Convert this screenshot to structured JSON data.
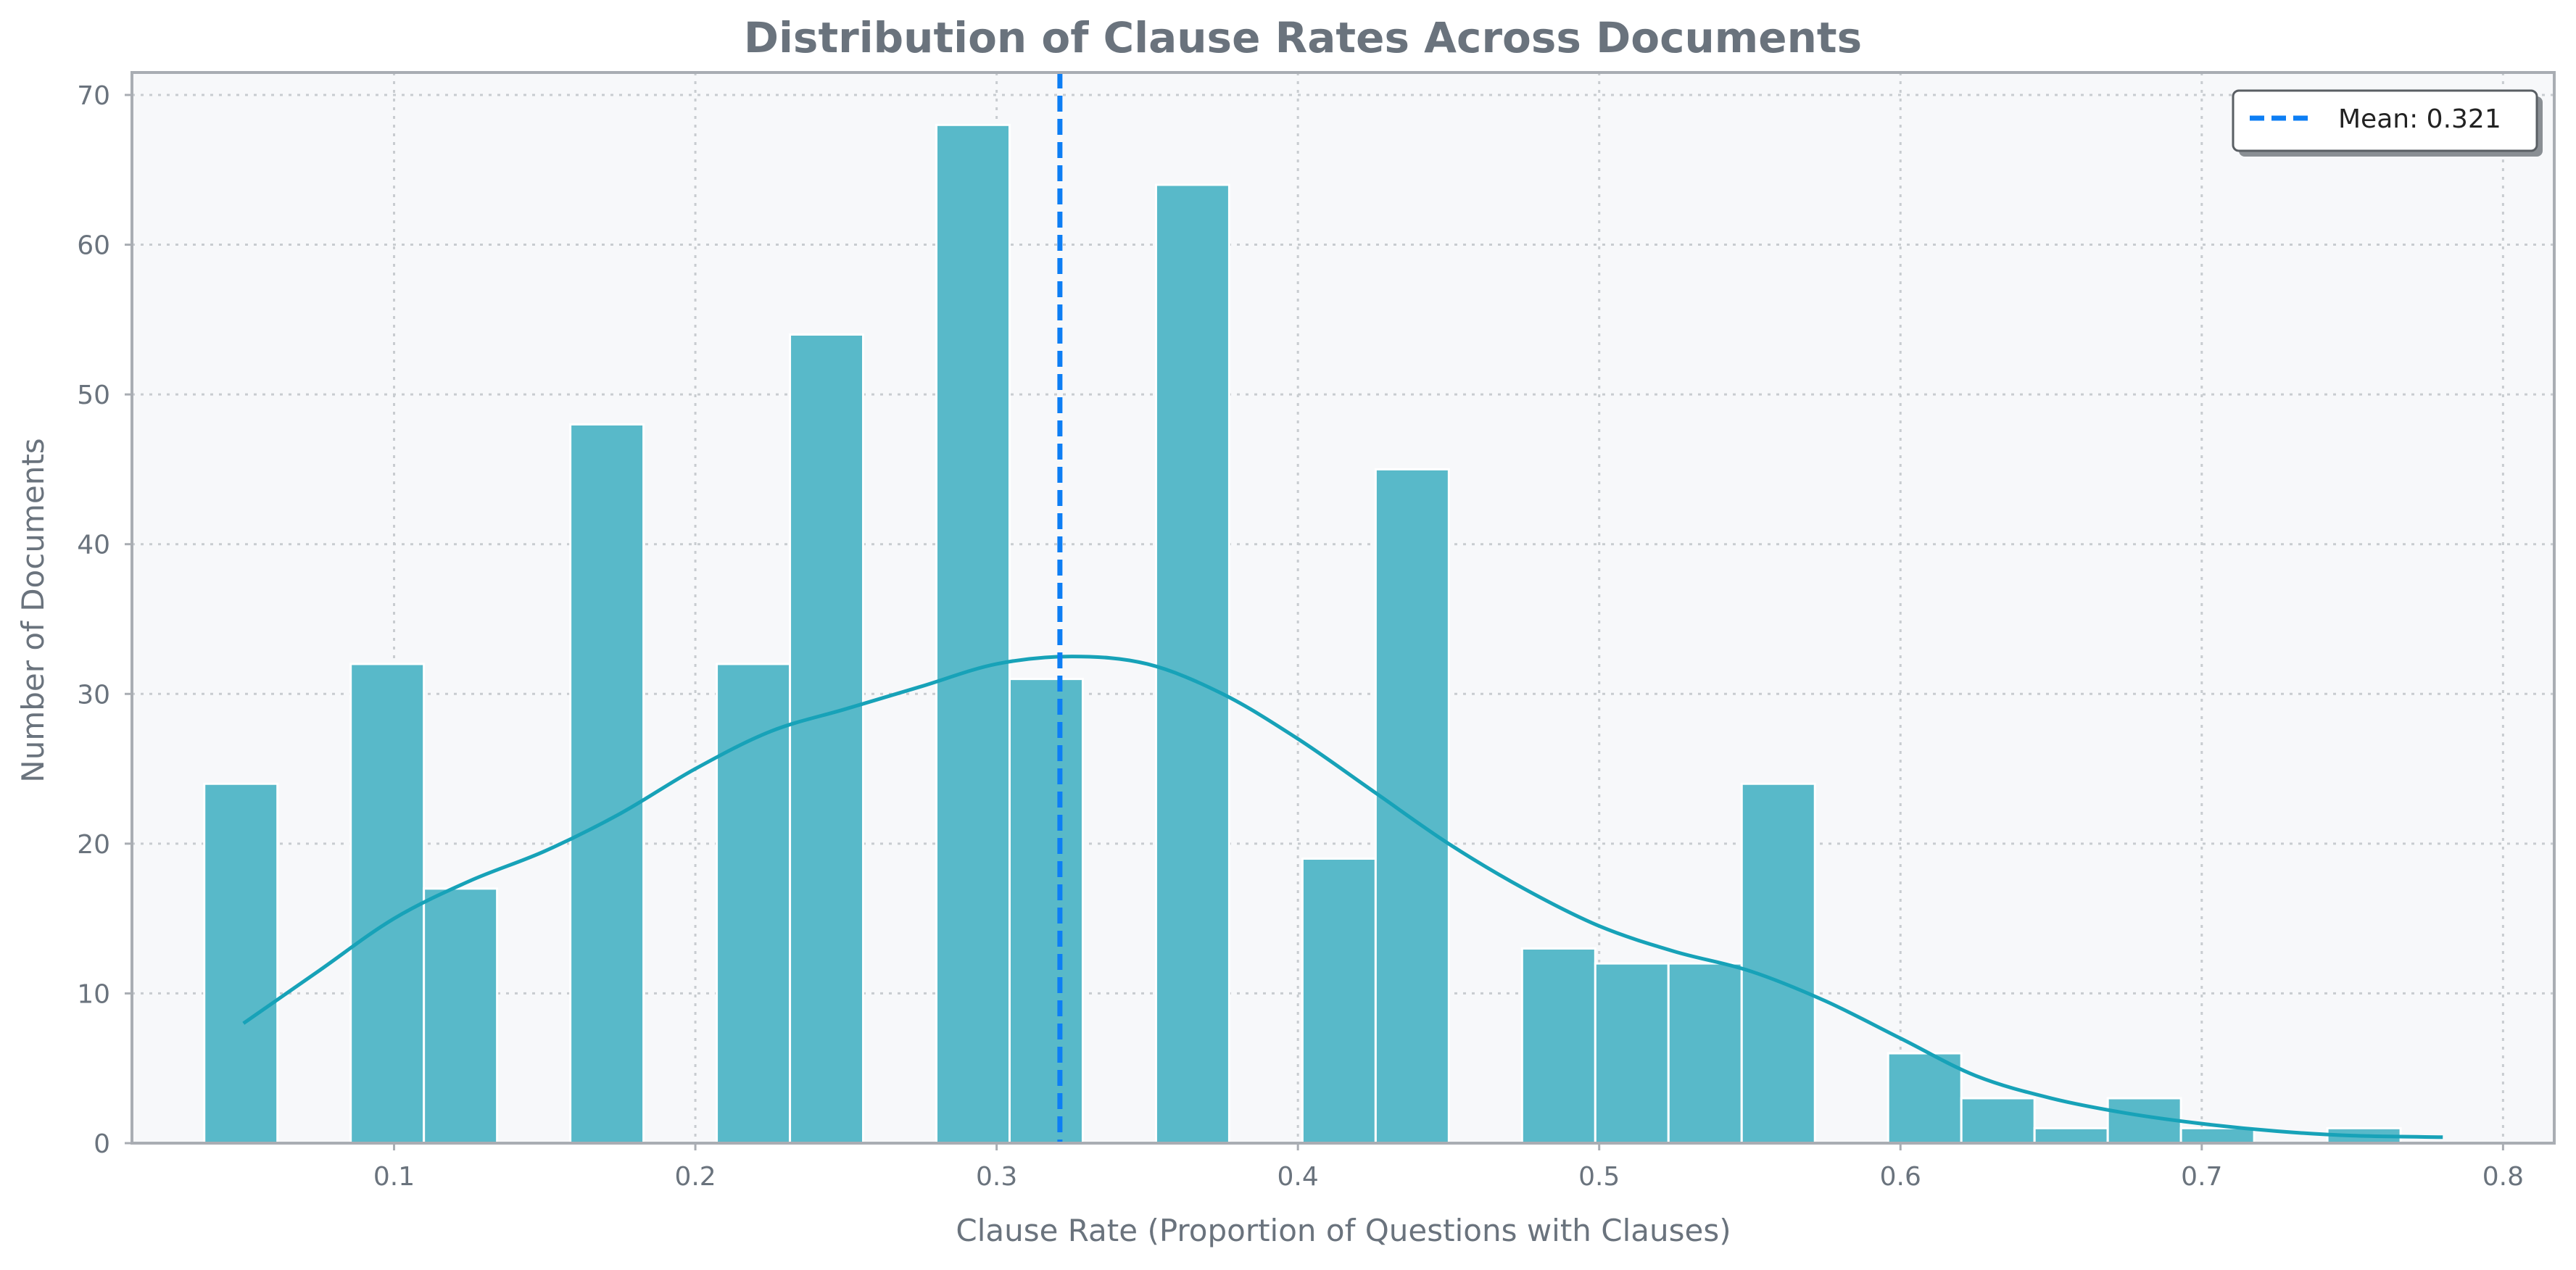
{
  "chart_data": {
    "type": "bar",
    "title": "Distribution of Clause Rates Across Documents",
    "xlabel": "Clause Rate (Proportion of Questions with Clauses)",
    "ylabel": "Number of Documents",
    "xlim": [
      0.013,
      0.817
    ],
    "ylim": [
      0,
      71.5
    ],
    "xticks": [
      0.1,
      0.2,
      0.3,
      0.4,
      0.5,
      0.6,
      0.7,
      0.8
    ],
    "xtick_labels": [
      "0.1",
      "0.2",
      "0.3",
      "0.4",
      "0.5",
      "0.6",
      "0.7",
      "0.8"
    ],
    "yticks": [
      0,
      10,
      20,
      30,
      40,
      50,
      60,
      70
    ],
    "ytick_labels": [
      "0",
      "10",
      "20",
      "30",
      "40",
      "50",
      "60",
      "70"
    ],
    "bin_width": 0.0243,
    "bins": [
      {
        "start": 0.037,
        "count": 24
      },
      {
        "start": 0.0856,
        "count": 32
      },
      {
        "start": 0.1099,
        "count": 17
      },
      {
        "start": 0.1585,
        "count": 48
      },
      {
        "start": 0.2071,
        "count": 32
      },
      {
        "start": 0.2314,
        "count": 54
      },
      {
        "start": 0.28,
        "count": 68
      },
      {
        "start": 0.3043,
        "count": 31
      },
      {
        "start": 0.3529,
        "count": 64
      },
      {
        "start": 0.4015,
        "count": 19
      },
      {
        "start": 0.4258,
        "count": 45
      },
      {
        "start": 0.4744,
        "count": 13
      },
      {
        "start": 0.4987,
        "count": 12
      },
      {
        "start": 0.523,
        "count": 12
      },
      {
        "start": 0.5473,
        "count": 24
      },
      {
        "start": 0.5959,
        "count": 6
      },
      {
        "start": 0.6202,
        "count": 3
      },
      {
        "start": 0.6445,
        "count": 1
      },
      {
        "start": 0.6688,
        "count": 3
      },
      {
        "start": 0.6931,
        "count": 1
      },
      {
        "start": 0.7417,
        "count": 1
      }
    ],
    "kde": {
      "x": [
        0.05,
        0.075,
        0.1,
        0.125,
        0.15,
        0.175,
        0.2,
        0.225,
        0.25,
        0.275,
        0.3,
        0.325,
        0.35,
        0.375,
        0.4,
        0.425,
        0.45,
        0.475,
        0.5,
        0.525,
        0.55,
        0.575,
        0.6,
        0.625,
        0.65,
        0.675,
        0.7,
        0.725,
        0.75,
        0.78
      ],
      "y": [
        8,
        11.5,
        15,
        17.5,
        19.5,
        22,
        25,
        27.5,
        29,
        30.5,
        32,
        32.5,
        32,
        30,
        27,
        23.5,
        20,
        17,
        14.5,
        12.8,
        11.5,
        9.5,
        7,
        4.5,
        3,
        2,
        1.3,
        0.8,
        0.5,
        0.4
      ]
    },
    "mean": 0.321,
    "legend": {
      "label": "Mean: 0.321",
      "position": "top-right"
    },
    "grid": true,
    "colors": {
      "bar": "#58b9c9",
      "bar_edge": "#ffffff",
      "kde": "#17a2b8",
      "mean_line": "#0d7ef4",
      "plot_bg": "#f7f8fa",
      "grid": "#c8ccd0",
      "spine": "#a9adb3",
      "text": "#6a737d"
    }
  }
}
